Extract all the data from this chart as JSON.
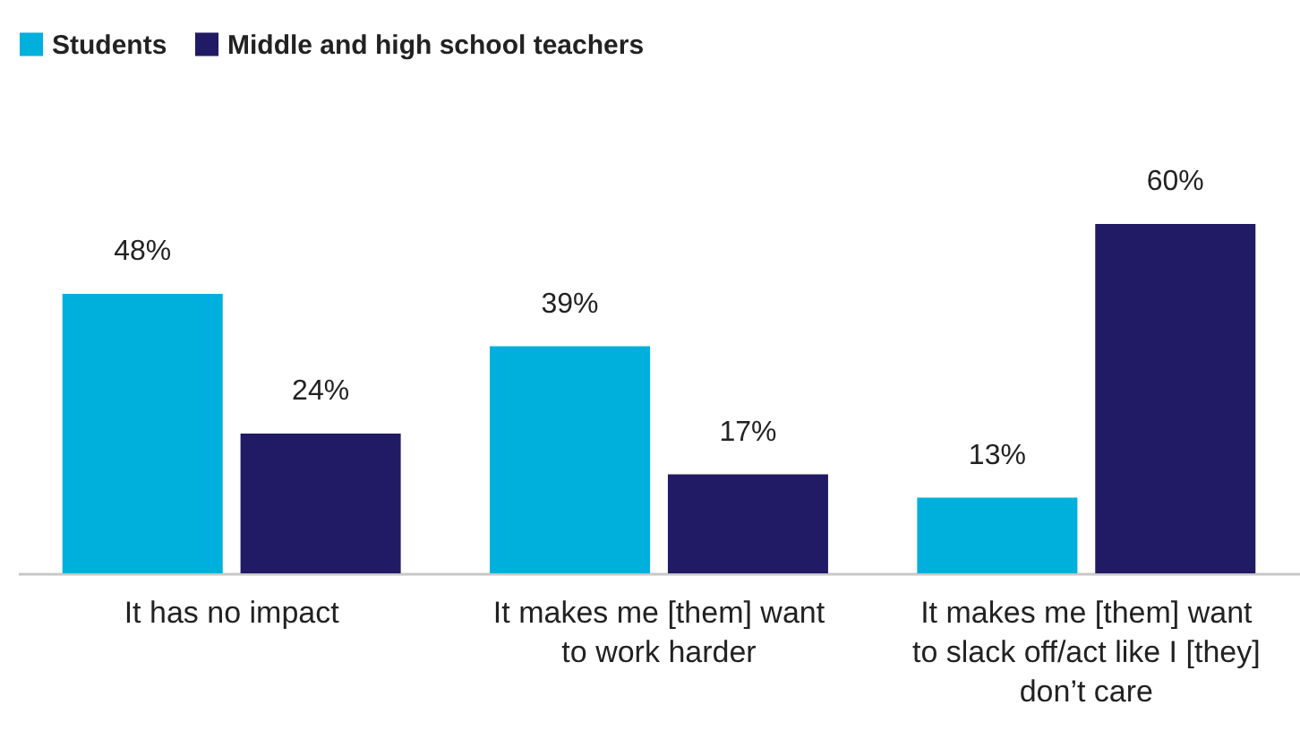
{
  "chart_data": {
    "type": "bar",
    "categories": [
      "It has no impact",
      "It makes me [them] want to work harder",
      "It makes me [them] want to slack off/act like I [they] don’t care"
    ],
    "series": [
      {
        "name": "Students",
        "color": "#00b0dc",
        "values": [
          48,
          39,
          13
        ],
        "value_labels": [
          "48%",
          "39%",
          "13%"
        ]
      },
      {
        "name": "Middle and high school teachers",
        "color": "#211a64",
        "values": [
          24,
          17,
          60
        ],
        "value_labels": [
          "24%",
          "17%",
          "60%"
        ]
      }
    ],
    "legend": "top left"
  }
}
